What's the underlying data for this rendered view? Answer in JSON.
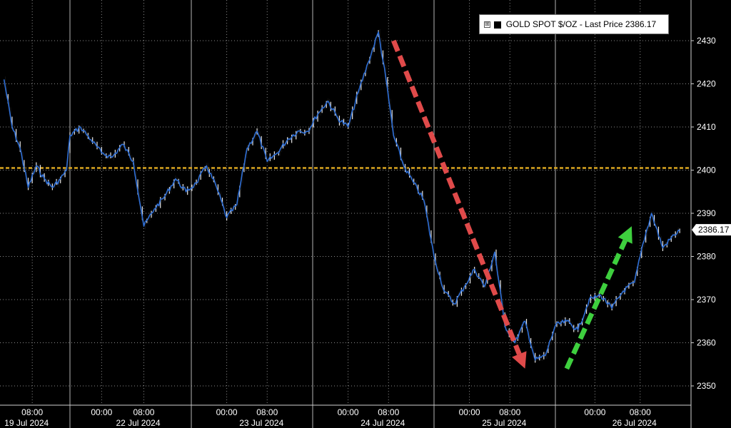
{
  "legend": {
    "expander_glyph": "⊞",
    "text": "GOLD SPOT $/OZ - Last Price 2386.17"
  },
  "last_price_label": "2386.17",
  "colors": {
    "background": "#000000",
    "grid": "#8a8a8a",
    "price_line": "#2f6fd6",
    "candle": "#ffffff",
    "reference_line": "#d9a520",
    "down_arrow": "#e04a4a",
    "up_arrow": "#3ecf3e",
    "axis_text": "#ffffff"
  },
  "chart_data": {
    "type": "line",
    "title": "",
    "xlabel": "",
    "ylabel": "",
    "series": [
      {
        "name": "GOLD SPOT $/OZ",
        "x": [
          "2024-07-19 01:00",
          "2024-07-19 03:00",
          "2024-07-19 05:00",
          "2024-07-19 07:00",
          "2024-07-19 09:00",
          "2024-07-19 11:00",
          "2024-07-19 13:00",
          "2024-07-19 15:00",
          "2024-07-19 16:30",
          "2024-07-21 18:00",
          "2024-07-21 20:00",
          "2024-07-21 22:00",
          "2024-07-22 00:00",
          "2024-07-22 02:00",
          "2024-07-22 04:00",
          "2024-07-22 06:00",
          "2024-07-22 08:00",
          "2024-07-22 10:00",
          "2024-07-22 12:00",
          "2024-07-22 14:00",
          "2024-07-22 16:00",
          "2024-07-22 18:00",
          "2024-07-22 20:00",
          "2024-07-22 22:00",
          "2024-07-23 00:00",
          "2024-07-23 02:00",
          "2024-07-23 04:00",
          "2024-07-23 06:00",
          "2024-07-23 08:00",
          "2024-07-23 10:00",
          "2024-07-23 12:00",
          "2024-07-23 14:00",
          "2024-07-23 16:00",
          "2024-07-23 18:00",
          "2024-07-23 20:00",
          "2024-07-23 22:00",
          "2024-07-24 00:00",
          "2024-07-24 02:00",
          "2024-07-24 04:00",
          "2024-07-24 06:00",
          "2024-07-24 07:30",
          "2024-07-24 09:00",
          "2024-07-24 11:00",
          "2024-07-24 13:00",
          "2024-07-24 15:00",
          "2024-07-24 17:00",
          "2024-07-24 19:00",
          "2024-07-24 21:00",
          "2024-07-24 23:00",
          "2024-07-25 01:00",
          "2024-07-25 03:00",
          "2024-07-25 05:00",
          "2024-07-25 07:00",
          "2024-07-25 09:00",
          "2024-07-25 11:00",
          "2024-07-25 13:00",
          "2024-07-25 15:00",
          "2024-07-25 17:00",
          "2024-07-25 19:00",
          "2024-07-25 21:00",
          "2024-07-25 23:00",
          "2024-07-26 01:00",
          "2024-07-26 03:00",
          "2024-07-26 05:00",
          "2024-07-26 07:00",
          "2024-07-26 08:30",
          "2024-07-26 10:00",
          "2024-07-26 12:00",
          "2024-07-26 14:00",
          "2024-07-26 15:00"
        ],
        "values": [
          2421,
          2410,
          2405,
          2396,
          2401,
          2398,
          2396,
          2398,
          2400,
          2408,
          2410,
          2407,
          2404,
          2403,
          2406,
          2402,
          2387,
          2391,
          2394,
          2398,
          2395,
          2397,
          2401,
          2396,
          2389,
          2392,
          2405,
          2409,
          2402,
          2404,
          2407,
          2409,
          2409,
          2413,
          2416,
          2412,
          2410,
          2418,
          2425,
          2432,
          2421,
          2408,
          2401,
          2397,
          2393,
          2380,
          2372,
          2369,
          2373,
          2377,
          2373,
          2381,
          2364,
          2360,
          2365,
          2356,
          2357,
          2364,
          2365,
          2363,
          2370,
          2371,
          2368,
          2372,
          2374,
          2383,
          2390,
          2382,
          2385,
          2386
        ]
      }
    ],
    "y_ticks": [
      2350,
      2360,
      2370,
      2380,
      2390,
      2400,
      2410,
      2420,
      2430
    ],
    "ylim": [
      2345,
      2440
    ],
    "xlim": [
      "2024-07-19 00:00",
      "2024-07-26 17:00"
    ],
    "x_tick_labels": [
      {
        "x": "2024-07-19 08:00",
        "time": "08:00",
        "date": "19 Jul 2024"
      },
      {
        "x": "2024-07-22 00:00",
        "time": "00:00",
        "date": ""
      },
      {
        "x": "2024-07-22 08:00",
        "time": "08:00",
        "date": "22 Jul 2024"
      },
      {
        "x": "2024-07-23 00:00",
        "time": "00:00",
        "date": ""
      },
      {
        "x": "2024-07-23 08:00",
        "time": "08:00",
        "date": "23 Jul 2024"
      },
      {
        "x": "2024-07-24 00:00",
        "time": "00:00",
        "date": ""
      },
      {
        "x": "2024-07-24 08:00",
        "time": "08:00",
        "date": "24 Jul 2024"
      },
      {
        "x": "2024-07-25 00:00",
        "time": "00:00",
        "date": ""
      },
      {
        "x": "2024-07-25 08:00",
        "time": "08:00",
        "date": "25 Jul 2024"
      },
      {
        "x": "2024-07-26 00:00",
        "time": "00:00",
        "date": ""
      },
      {
        "x": "2024-07-26 08:00",
        "time": "08:00",
        "date": "26 Jul 2024"
      }
    ],
    "reference_line": {
      "y": 2400.5,
      "style": "dashed"
    },
    "last_value": 2386.17,
    "annotations": [
      {
        "type": "arrow",
        "color": "down",
        "from": {
          "x": "2024-07-24 09:00",
          "y": 2430
        },
        "to": {
          "x": "2024-07-25 11:00",
          "y": 2354
        }
      },
      {
        "type": "arrow",
        "color": "up",
        "from": {
          "x": "2024-07-25 19:00",
          "y": 2354
        },
        "to": {
          "x": "2024-07-26 06:30",
          "y": 2387
        }
      }
    ],
    "grid": true,
    "legend": "top-right"
  }
}
